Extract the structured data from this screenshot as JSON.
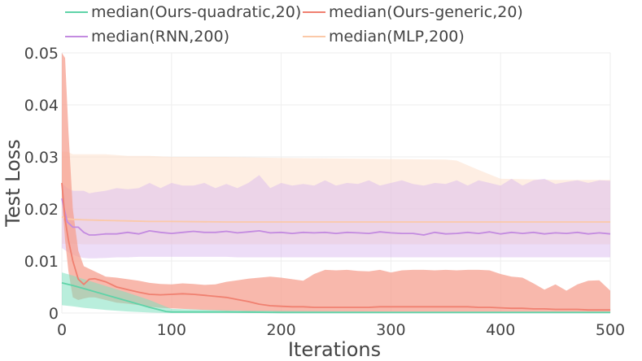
{
  "chart_data": {
    "type": "line",
    "xlabel": "Iterations",
    "ylabel": "Test Loss",
    "xlim": [
      0,
      500
    ],
    "ylim": [
      0,
      0.05
    ],
    "x_ticks": [
      "0",
      "100",
      "200",
      "300",
      "400",
      "500"
    ],
    "y_ticks": [
      "0",
      "0.01",
      "0.02",
      "0.03",
      "0.04",
      "0.05"
    ],
    "grid": true,
    "legend_position": "top",
    "series": [
      {
        "name": "median(Ours-quadratic,20)",
        "color": "#5fd3a8",
        "band_color": "#7fe0c0",
        "x": [
          0,
          10,
          20,
          40,
          60,
          80,
          95,
          100,
          150,
          200,
          300,
          400,
          500
        ],
        "median": [
          0.0058,
          0.0053,
          0.0047,
          0.0035,
          0.0023,
          0.0011,
          0.0003,
          0.0002,
          0.0002,
          0.0001,
          0.0001,
          0.0001,
          0.0001
        ],
        "upper": [
          0.0078,
          0.0072,
          0.0065,
          0.0052,
          0.0039,
          0.0025,
          0.0012,
          0.0008,
          0.0005,
          0.0004,
          0.0003,
          0.0003,
          0.0003
        ],
        "lower": [
          0.0015,
          0.0013,
          0.001,
          0.0006,
          0.0003,
          0.0001,
          0.0,
          0.0,
          0.0,
          0.0,
          0.0,
          0.0,
          0.0
        ]
      },
      {
        "name": "median(Ours-generic,20)",
        "color": "#f08070",
        "band_color": "#f5a090",
        "x": [
          0,
          3,
          6,
          10,
          15,
          20,
          25,
          30,
          40,
          50,
          60,
          70,
          80,
          90,
          100,
          110,
          120,
          130,
          140,
          150,
          160,
          170,
          180,
          190,
          200,
          210,
          220,
          230,
          240,
          250,
          260,
          270,
          280,
          290,
          300,
          310,
          320,
          330,
          340,
          350,
          360,
          370,
          380,
          390,
          400,
          410,
          420,
          430,
          440,
          450,
          460,
          470,
          480,
          490,
          500
        ],
        "median": [
          0.025,
          0.018,
          0.014,
          0.01,
          0.0065,
          0.0055,
          0.0065,
          0.0066,
          0.006,
          0.005,
          0.0045,
          0.004,
          0.0036,
          0.0035,
          0.0036,
          0.0037,
          0.0036,
          0.0034,
          0.0032,
          0.003,
          0.0026,
          0.0022,
          0.0017,
          0.0014,
          0.0013,
          0.0012,
          0.0012,
          0.0011,
          0.0011,
          0.0011,
          0.0011,
          0.0011,
          0.0011,
          0.0012,
          0.0012,
          0.0012,
          0.0012,
          0.0012,
          0.0012,
          0.0012,
          0.0012,
          0.0012,
          0.0011,
          0.0011,
          0.001,
          0.0009,
          0.0009,
          0.0008,
          0.0008,
          0.0007,
          0.0007,
          0.0007,
          0.0006,
          0.0006,
          0.0006
        ],
        "upper": [
          0.05,
          0.049,
          0.035,
          0.02,
          0.012,
          0.009,
          0.0085,
          0.008,
          0.007,
          0.0068,
          0.0065,
          0.0062,
          0.0058,
          0.0056,
          0.0055,
          0.0057,
          0.0056,
          0.0054,
          0.0055,
          0.006,
          0.0063,
          0.0066,
          0.0068,
          0.007,
          0.0068,
          0.0065,
          0.0062,
          0.0075,
          0.0083,
          0.0082,
          0.0083,
          0.0081,
          0.008,
          0.0083,
          0.0078,
          0.0082,
          0.0083,
          0.0083,
          0.0082,
          0.0083,
          0.0082,
          0.0083,
          0.0083,
          0.0082,
          0.0075,
          0.007,
          0.0068,
          0.0057,
          0.0045,
          0.0055,
          0.0043,
          0.0055,
          0.0062,
          0.0063,
          0.0043
        ],
        "lower": [
          0.022,
          0.014,
          0.008,
          0.003,
          0.0025,
          0.0028,
          0.003,
          0.003,
          0.0025,
          0.002,
          0.0018,
          0.0015,
          0.0012,
          0.001,
          0.0009,
          0.0008,
          0.0007,
          0.0006,
          0.0005,
          0.0004,
          0.0004,
          0.0003,
          0.0003,
          0.0003,
          0.0002,
          0.0002,
          0.0002,
          0.0002,
          0.0002,
          0.0002,
          0.0002,
          0.0002,
          0.0002,
          0.0002,
          0.0002,
          0.0002,
          0.0002,
          0.0002,
          0.0002,
          0.0002,
          0.0002,
          0.0002,
          0.0002,
          0.0002,
          0.0002,
          0.0002,
          0.0002,
          0.0002,
          0.0002,
          0.0002,
          0.0002,
          0.0002,
          0.0002,
          0.0002,
          0.0002
        ]
      },
      {
        "name": "median(RNN,200)",
        "color": "#c38be0",
        "band_color": "#d8b4ee",
        "x": [
          0,
          5,
          10,
          15,
          20,
          25,
          30,
          40,
          50,
          60,
          70,
          80,
          90,
          100,
          110,
          120,
          130,
          140,
          150,
          160,
          170,
          180,
          190,
          200,
          210,
          220,
          230,
          240,
          250,
          260,
          270,
          280,
          290,
          300,
          310,
          320,
          330,
          340,
          350,
          360,
          370,
          380,
          390,
          400,
          410,
          420,
          430,
          440,
          450,
          460,
          470,
          480,
          490,
          500
        ],
        "median": [
          0.022,
          0.0175,
          0.0165,
          0.0165,
          0.0155,
          0.015,
          0.015,
          0.0152,
          0.0152,
          0.0155,
          0.0152,
          0.0158,
          0.0155,
          0.0153,
          0.0155,
          0.0157,
          0.0155,
          0.0155,
          0.0157,
          0.0154,
          0.0156,
          0.0158,
          0.0154,
          0.0155,
          0.0153,
          0.0155,
          0.0154,
          0.0155,
          0.0153,
          0.0155,
          0.0154,
          0.0153,
          0.0156,
          0.0154,
          0.0153,
          0.0153,
          0.015,
          0.0155,
          0.0152,
          0.0153,
          0.0155,
          0.0153,
          0.0156,
          0.0152,
          0.0155,
          0.0153,
          0.0155,
          0.0152,
          0.0154,
          0.0153,
          0.0155,
          0.0152,
          0.0154,
          0.0152
        ],
        "upper": [
          0.025,
          0.024,
          0.0235,
          0.0235,
          0.0235,
          0.023,
          0.0232,
          0.0235,
          0.024,
          0.0238,
          0.024,
          0.025,
          0.024,
          0.025,
          0.0245,
          0.0245,
          0.025,
          0.024,
          0.0248,
          0.024,
          0.025,
          0.0265,
          0.024,
          0.025,
          0.0245,
          0.0248,
          0.0245,
          0.0255,
          0.0245,
          0.025,
          0.0248,
          0.0255,
          0.0245,
          0.025,
          0.0255,
          0.0248,
          0.0245,
          0.025,
          0.0248,
          0.0255,
          0.0245,
          0.0255,
          0.025,
          0.0245,
          0.0258,
          0.0245,
          0.0255,
          0.0258,
          0.0248,
          0.0252,
          0.0255,
          0.025,
          0.0255,
          0.0254
        ],
        "lower": [
          0.0125,
          0.0118,
          0.0112,
          0.0108,
          0.0106,
          0.0105,
          0.0105,
          0.0106,
          0.0107,
          0.0107,
          0.0108,
          0.0108,
          0.0108,
          0.0108,
          0.0108,
          0.0108,
          0.0108,
          0.0108,
          0.0108,
          0.0107,
          0.0107,
          0.0107,
          0.0107,
          0.0107,
          0.0107,
          0.0107,
          0.0107,
          0.0107,
          0.0107,
          0.0107,
          0.0107,
          0.0107,
          0.0107,
          0.0107,
          0.0107,
          0.0107,
          0.0107,
          0.0107,
          0.0107,
          0.0107,
          0.0107,
          0.0107,
          0.0107,
          0.0107,
          0.0107,
          0.0107,
          0.0107,
          0.0107,
          0.0107,
          0.0107,
          0.0107,
          0.0107,
          0.0107,
          0.0107
        ]
      },
      {
        "name": "median(MLP,200)",
        "color": "#fbc9a8",
        "band_color": "#fde0cc",
        "x": [
          0,
          5,
          10,
          20,
          40,
          60,
          80,
          100,
          150,
          200,
          250,
          300,
          350,
          360,
          380,
          400,
          450,
          500
        ],
        "median": [
          0.0185,
          0.0181,
          0.018,
          0.0179,
          0.0178,
          0.0177,
          0.0176,
          0.0176,
          0.0175,
          0.0175,
          0.0175,
          0.0175,
          0.0175,
          0.0175,
          0.0175,
          0.0175,
          0.0175,
          0.0175
        ],
        "upper": [
          0.031,
          0.031,
          0.0305,
          0.0305,
          0.0305,
          0.0302,
          0.0302,
          0.03,
          0.03,
          0.0298,
          0.0297,
          0.0296,
          0.0295,
          0.0293,
          0.0275,
          0.0258,
          0.0256,
          0.0256
        ],
        "lower": [
          0.0133,
          0.0133,
          0.0133,
          0.0132,
          0.0132,
          0.0132,
          0.0132,
          0.0132,
          0.0132,
          0.0132,
          0.0132,
          0.0132,
          0.0132,
          0.0132,
          0.0132,
          0.0132,
          0.0132,
          0.0132
        ]
      }
    ]
  }
}
